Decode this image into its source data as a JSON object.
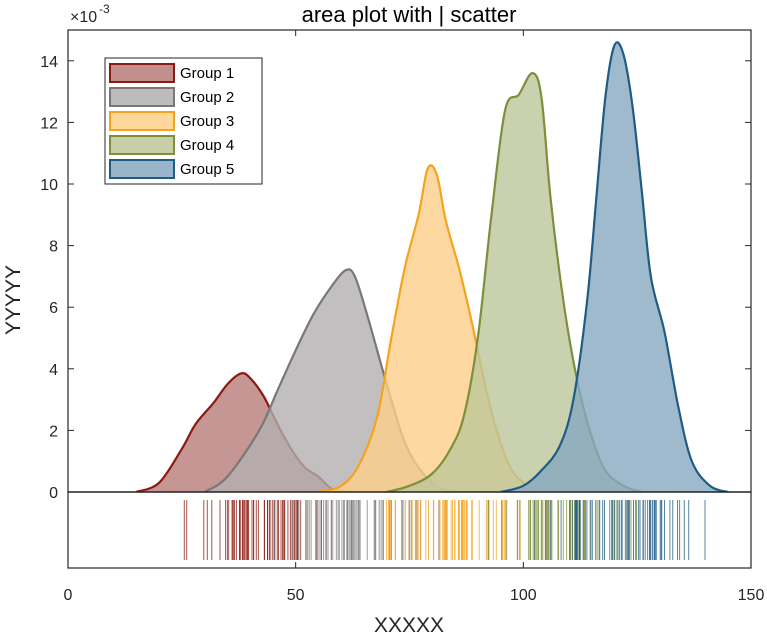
{
  "chart_data": {
    "type": "area",
    "title": "area plot with | scatter",
    "xlabel": "XXXXX",
    "ylabel": "YYYYY",
    "y_exponent_label": "×10",
    "y_exponent_power": "-3",
    "xlim": [
      0,
      150
    ],
    "ylim": [
      0,
      15
    ],
    "xticks": [
      "0",
      "50",
      "100",
      "150"
    ],
    "yticks": [
      "0",
      "2",
      "4",
      "6",
      "8",
      "10",
      "12",
      "14"
    ],
    "grid": false,
    "legend_position": "top-left",
    "series": [
      {
        "name": "Group 1",
        "color": "#8B1A10",
        "fill": "#B77C78",
        "points": [
          [
            15,
            0
          ],
          [
            20,
            0.3
          ],
          [
            25,
            1.4
          ],
          [
            28,
            2.2
          ],
          [
            32,
            2.9
          ],
          [
            35,
            3.5
          ],
          [
            38,
            3.85
          ],
          [
            40,
            3.7
          ],
          [
            43,
            3.1
          ],
          [
            46,
            2.2
          ],
          [
            49,
            1.4
          ],
          [
            52,
            0.8
          ],
          [
            55,
            0.5
          ],
          [
            58,
            0.1
          ],
          [
            62,
            0
          ]
        ],
        "rug_range": [
          21,
          66
        ]
      },
      {
        "name": "Group 2",
        "color": "#7A7778",
        "fill": "#B2AFB0",
        "points": [
          [
            30,
            0
          ],
          [
            35,
            0.5
          ],
          [
            42,
            2.0
          ],
          [
            46,
            3.3
          ],
          [
            50,
            4.6
          ],
          [
            54,
            5.8
          ],
          [
            58,
            6.7
          ],
          [
            61,
            7.2
          ],
          [
            63,
            7.0
          ],
          [
            66,
            5.6
          ],
          [
            70,
            3.5
          ],
          [
            74,
            1.6
          ],
          [
            78,
            0.6
          ],
          [
            82,
            0.1
          ],
          [
            86,
            0
          ]
        ],
        "rug_range": [
          38,
          90
        ]
      },
      {
        "name": "Group 3",
        "color": "#F5A31E",
        "fill": "#FDD08A",
        "points": [
          [
            55,
            0
          ],
          [
            60,
            0.2
          ],
          [
            64,
            0.9
          ],
          [
            68,
            2.5
          ],
          [
            71,
            5.0
          ],
          [
            74,
            7.3
          ],
          [
            77,
            9.0
          ],
          [
            79,
            10.5
          ],
          [
            81,
            10.3
          ],
          [
            83,
            8.8
          ],
          [
            86,
            7.2
          ],
          [
            89,
            5.3
          ],
          [
            92,
            3.2
          ],
          [
            95,
            1.6
          ],
          [
            98,
            0.6
          ],
          [
            103,
            0
          ]
        ],
        "rug_range": [
          62,
          110
        ]
      },
      {
        "name": "Group 4",
        "color": "#7D8F3A",
        "fill": "#BDC69A",
        "points": [
          [
            70,
            0
          ],
          [
            75,
            0.2
          ],
          [
            80,
            0.6
          ],
          [
            84,
            1.4
          ],
          [
            87,
            2.5
          ],
          [
            90,
            5.0
          ],
          [
            93,
            9.0
          ],
          [
            96,
            12.4
          ],
          [
            99,
            12.9
          ],
          [
            102,
            13.6
          ],
          [
            104,
            12.8
          ],
          [
            106,
            9.5
          ],
          [
            109,
            6.0
          ],
          [
            112,
            3.5
          ],
          [
            115,
            1.8
          ],
          [
            118,
            0.7
          ],
          [
            122,
            0.2
          ],
          [
            126,
            0
          ]
        ],
        "rug_range": [
          86,
          132
        ]
      },
      {
        "name": "Group 5",
        "color": "#1F5C85",
        "fill": "#87A8C0",
        "points": [
          [
            95,
            0
          ],
          [
            100,
            0.2
          ],
          [
            104,
            0.7
          ],
          [
            108,
            1.5
          ],
          [
            111,
            3.0
          ],
          [
            114,
            6.2
          ],
          [
            116,
            9.5
          ],
          [
            118,
            12.8
          ],
          [
            120,
            14.5
          ],
          [
            122,
            14.2
          ],
          [
            124,
            12.5
          ],
          [
            126,
            9.8
          ],
          [
            128,
            7.0
          ],
          [
            131,
            5.2
          ],
          [
            134,
            2.8
          ],
          [
            137,
            1.0
          ],
          [
            141,
            0.2
          ],
          [
            145,
            0
          ]
        ],
        "rug_range": [
          98,
          145
        ]
      }
    ]
  }
}
